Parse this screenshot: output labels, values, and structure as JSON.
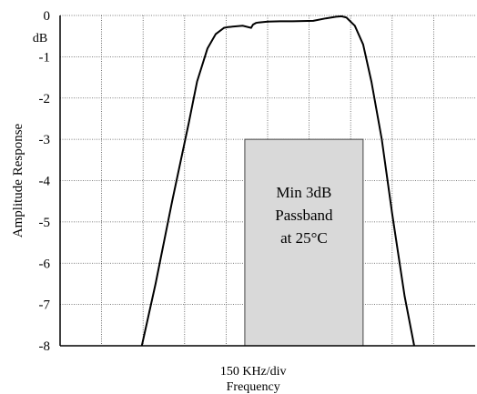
{
  "chart_data": {
    "type": "line",
    "title": "",
    "ylabel": "Amplitude Response",
    "xlabel_lines": [
      "150 KHz/div",
      "Frequency"
    ],
    "y_unit": "dB",
    "ylim": [
      -8,
      0
    ],
    "yticks": [
      {
        "value": 0,
        "label": "0"
      },
      {
        "value": -1,
        "label": "-1"
      },
      {
        "value": -2,
        "label": "-2"
      },
      {
        "value": -3,
        "label": "-3"
      },
      {
        "value": -4,
        "label": "-4"
      },
      {
        "value": -5,
        "label": "-5"
      },
      {
        "value": -6,
        "label": "-6"
      },
      {
        "value": -7,
        "label": "-7"
      },
      {
        "value": -8,
        "label": "-8"
      }
    ],
    "x_divisions": 10,
    "xlim": [
      0,
      10
    ],
    "grid": true,
    "x_unit_note": "divisions of 150 KHz",
    "series": [
      {
        "x": [
          1.97,
          2.3,
          2.7,
          3.1,
          3.3,
          3.55,
          3.75,
          3.95,
          4.05,
          4.4,
          4.6,
          4.65,
          4.72,
          4.78,
          5.0,
          5.3,
          5.6,
          6.1,
          6.4,
          6.65,
          6.78,
          6.9,
          7.1,
          7.3,
          7.5,
          7.75,
          8.0,
          8.3,
          8.53
        ],
        "y": [
          -8,
          -6.5,
          -4.5,
          -2.6,
          -1.6,
          -0.8,
          -0.45,
          -0.3,
          -0.28,
          -0.25,
          -0.3,
          -0.22,
          -0.18,
          -0.17,
          -0.15,
          -0.14,
          -0.14,
          -0.13,
          -0.07,
          -0.03,
          -0.02,
          -0.05,
          -0.25,
          -0.7,
          -1.6,
          -3.0,
          -4.8,
          -6.8,
          -8
        ]
      }
    ],
    "annotation": {
      "text_lines": [
        "Min 3dB",
        "Passband",
        "at 25°C"
      ],
      "x_range": [
        4.45,
        7.3
      ],
      "y_range": [
        -8,
        -3
      ]
    },
    "colors": {
      "curve": "#000000",
      "grid": "#555555",
      "annotation_fill": "#d9d9d9",
      "annotation_stroke": "#444444"
    }
  }
}
